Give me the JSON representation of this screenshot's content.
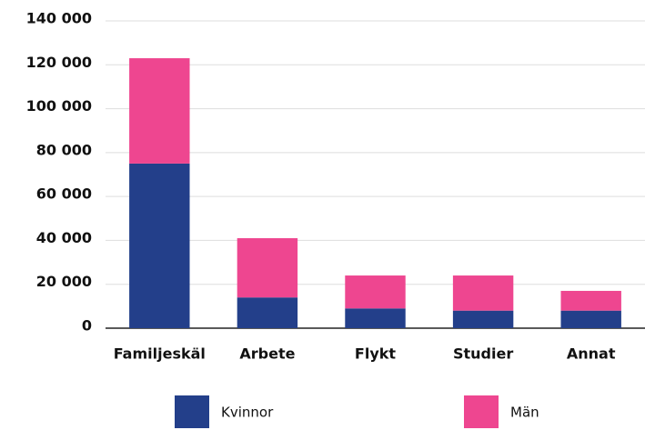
{
  "chart_data": {
    "type": "bar",
    "stacked": true,
    "categories": [
      "Familjeskäl",
      "Arbete",
      "Flykt",
      "Studier",
      "Annat"
    ],
    "series": [
      {
        "name": "Kvinnor",
        "color": "#233f8a",
        "values": [
          75000,
          14000,
          9000,
          8000,
          8000
        ]
      },
      {
        "name": "Män",
        "color": "#ee4690",
        "values": [
          48000,
          27000,
          15000,
          16000,
          9000
        ]
      }
    ],
    "ylim": [
      0,
      140000
    ],
    "yticks": [
      0,
      {
        "value": 20000,
        "label": "20 000"
      },
      {
        "value": 40000,
        "label": "40 000"
      },
      {
        "value": 60000,
        "label": "60 000"
      },
      {
        "value": 80000,
        "label": "80 000"
      },
      {
        "value": 100000,
        "label": "100 000"
      },
      {
        "value": 120000,
        "label": "120 000"
      },
      {
        "value": 140000,
        "label": "140 000"
      }
    ],
    "grid": true,
    "legend": "bottom"
  }
}
